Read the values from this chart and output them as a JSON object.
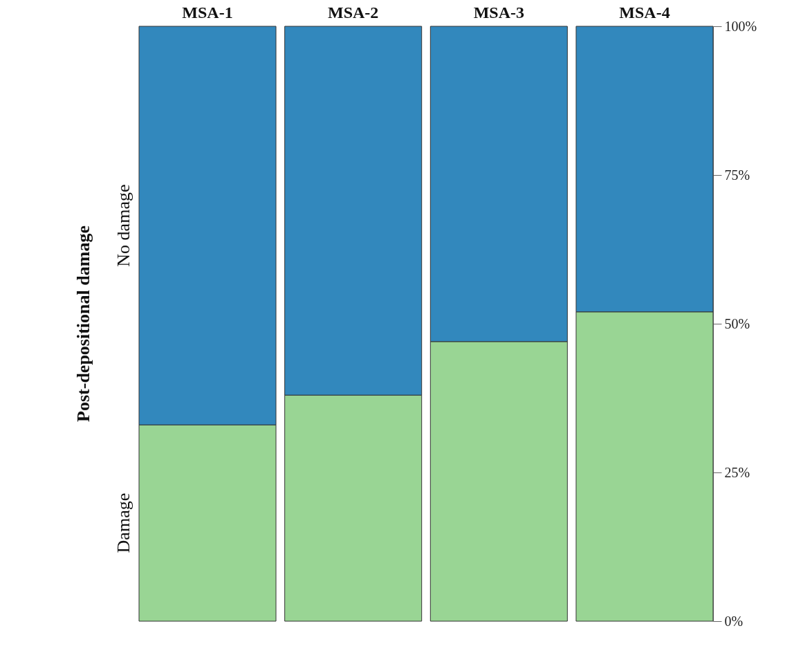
{
  "chart_data": {
    "type": "bar",
    "stacked": true,
    "categories": [
      "MSA-1",
      "MSA-2",
      "MSA-3",
      "MSA-4"
    ],
    "series": [
      {
        "name": "Damage",
        "color": "#99d594",
        "values": [
          33,
          38,
          47,
          52
        ]
      },
      {
        "name": "No damage",
        "color": "#3288bd",
        "values": [
          67,
          62,
          53,
          48
        ]
      }
    ],
    "ylabel": "Post-depositional damage",
    "ylim": [
      0,
      100
    ],
    "yticks": [
      {
        "value": 0,
        "label": "0%"
      },
      {
        "value": 25,
        "label": "25%"
      },
      {
        "value": 50,
        "label": "50%"
      },
      {
        "value": 75,
        "label": "75%"
      },
      {
        "value": 100,
        "label": "100%"
      }
    ],
    "legend": false,
    "grid": false
  }
}
